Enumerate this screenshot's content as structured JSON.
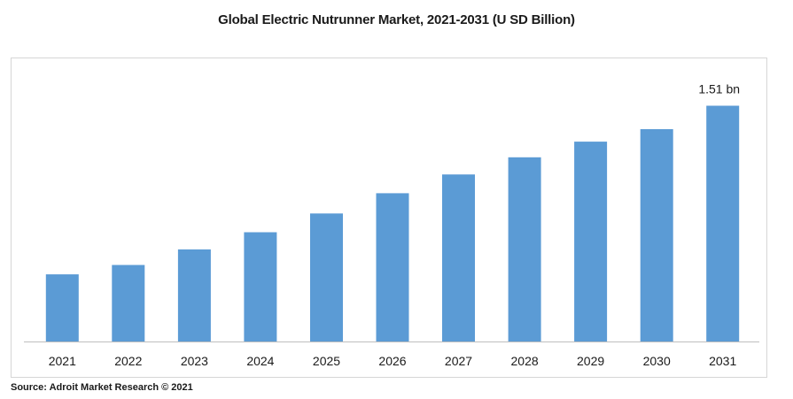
{
  "chart_data": {
    "type": "bar",
    "title": "Global Electric Nutrunner Market, 2021-2031 (U SD Billion)",
    "xlabel": "",
    "ylabel": "",
    "categories": [
      "2021",
      "2022",
      "2023",
      "2024",
      "2025",
      "2026",
      "2027",
      "2028",
      "2029",
      "2030",
      "2031"
    ],
    "values": [
      0.43,
      0.49,
      0.59,
      0.7,
      0.82,
      0.95,
      1.07,
      1.18,
      1.28,
      1.36,
      1.51
    ],
    "ylim": [
      0,
      1.7
    ],
    "grid": false,
    "legend": "none",
    "bar_color": "#5b9bd5",
    "data_labels": [
      {
        "category": "2031",
        "text": "1.51 bn"
      }
    ]
  },
  "source": "Source: Adroit Market Research © 2021"
}
